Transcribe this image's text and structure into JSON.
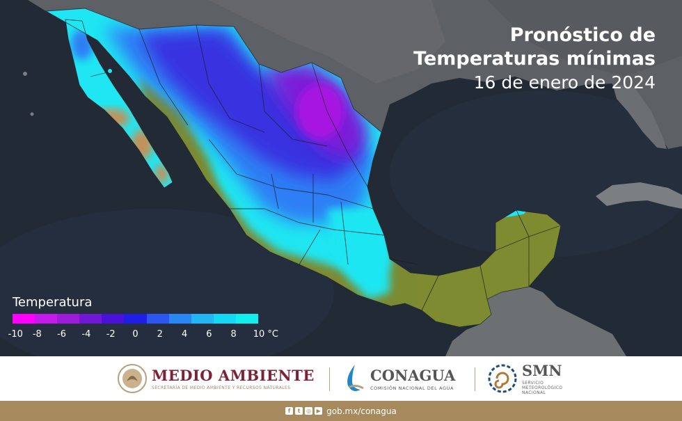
{
  "title": {
    "line1": "Pronóstico de",
    "line2": "Temperaturas mínimas",
    "date": "16 de enero de 2024"
  },
  "legend": {
    "title": "Temperatura",
    "ticks": [
      "-10",
      "-8",
      "-6",
      "-4",
      "-2",
      "0",
      "2",
      "4",
      "6",
      "8",
      "10 °C"
    ],
    "colors": [
      "#ff00ff",
      "#c21bea",
      "#9b1bd8",
      "#7018d4",
      "#4a12d6",
      "#1f1ee6",
      "#2d55ef",
      "#2a86f2",
      "#22b6f4",
      "#14d8f4",
      "#12eeee"
    ]
  },
  "footer": {
    "medio_ambiente": {
      "name": "MEDIO AMBIENTE",
      "subtitle": "SECRETARÍA DE MEDIO AMBIENTE Y RECURSOS NATURALES"
    },
    "conagua": {
      "name": "CONAGUA",
      "subtitle": "COMISIÓN NACIONAL DEL AGUA"
    },
    "smn": {
      "name": "SMN",
      "subtitle_line1": "SERVICIO",
      "subtitle_line2": "METEOROLÓGICO",
      "subtitle_line3": "NACIONAL"
    }
  },
  "bottom_bar": {
    "url": "gob.mx/conagua",
    "social_icons": [
      "facebook-icon",
      "twitter-icon",
      "instagram-icon",
      "youtube-icon"
    ]
  },
  "map_colors": {
    "ocean": "#222a36",
    "land_dark": "#5f6266",
    "warm_land": "#7c8a32",
    "desert": "#c2925a",
    "cyan": "#1fe6f2",
    "blue": "#2f7ef5",
    "deep_blue": "#3730e0",
    "violet": "#7a1fd8",
    "magenta": "#a715e0"
  }
}
